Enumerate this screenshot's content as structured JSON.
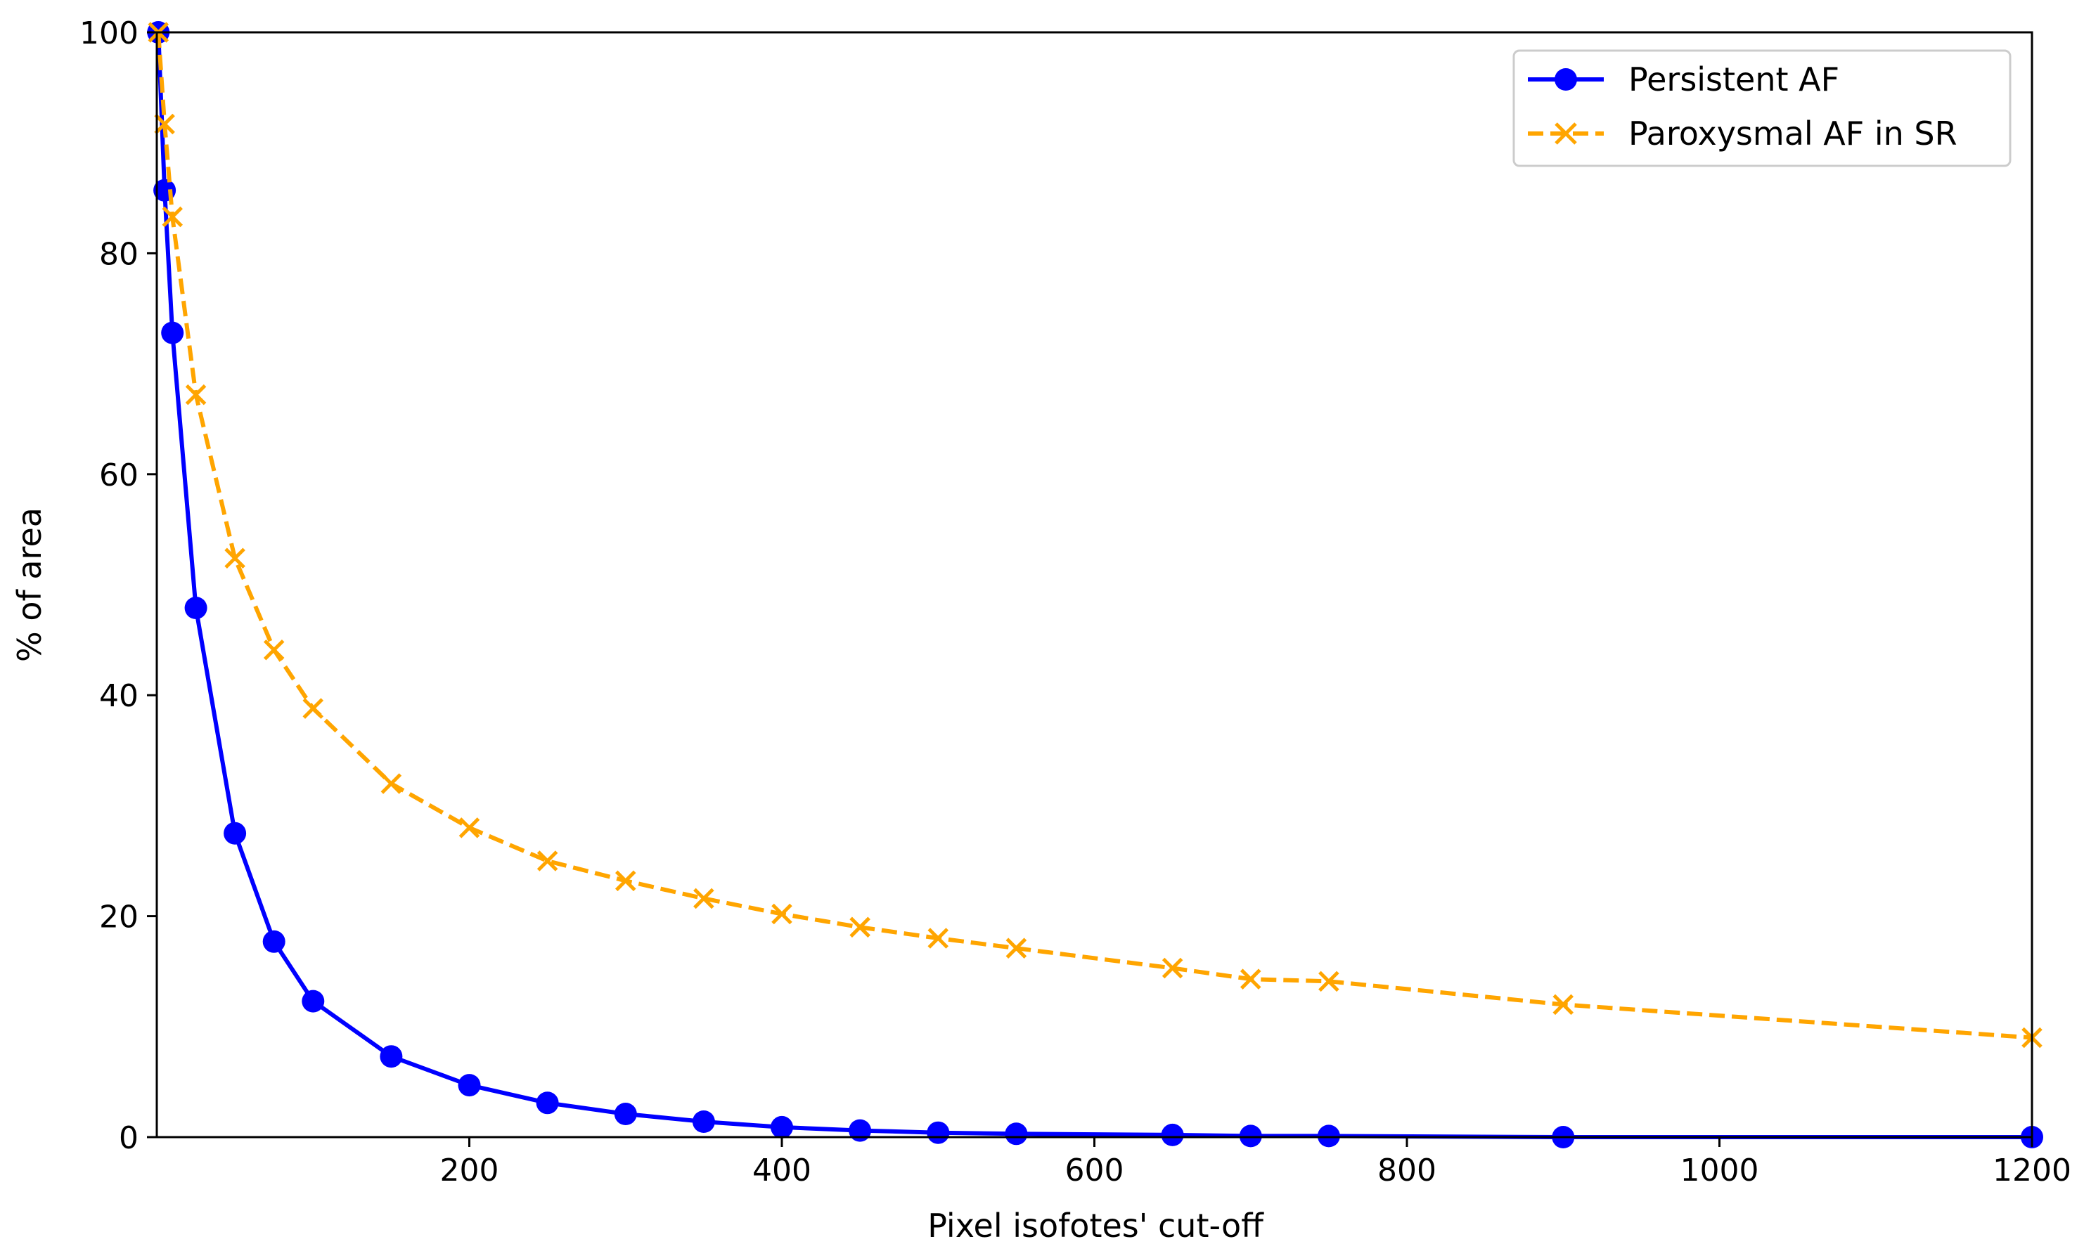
{
  "chart_data": {
    "type": "line",
    "title": "",
    "xlabel": "Pixel isofotes' cut-off",
    "ylabel": "% of area",
    "xlim": [
      0,
      1200
    ],
    "ylim": [
      0,
      100
    ],
    "xticks": [
      200,
      400,
      600,
      800,
      1000,
      1200
    ],
    "yticks": [
      0,
      20,
      40,
      60,
      80,
      100
    ],
    "grid": false,
    "legend_position": "top-right",
    "series": [
      {
        "name": "Persistent AF",
        "color": "#0000ff",
        "line_style": "solid",
        "marker": "circle",
        "x": [
          1,
          5,
          10,
          25,
          50,
          75,
          100,
          150,
          200,
          250,
          300,
          350,
          400,
          450,
          500,
          550,
          650,
          700,
          750,
          900,
          1200
        ],
        "y": [
          100,
          85.7,
          72.8,
          47.9,
          27.5,
          17.7,
          12.3,
          7.3,
          4.7,
          3.1,
          2.1,
          1.4,
          0.9,
          0.6,
          0.4,
          0.3,
          0.2,
          0.1,
          0.1,
          0.0,
          0.0
        ]
      },
      {
        "name": "Paroxysmal AF in SR",
        "color": "#ffa500",
        "line_style": "dashed",
        "marker": "x",
        "x": [
          1,
          5,
          10,
          25,
          50,
          75,
          100,
          150,
          200,
          250,
          300,
          350,
          400,
          450,
          500,
          550,
          650,
          700,
          750,
          900,
          1200
        ],
        "y": [
          100,
          91.7,
          83.3,
          67.2,
          52.4,
          44.1,
          38.8,
          32.0,
          28.0,
          25.0,
          23.2,
          21.6,
          20.2,
          19.0,
          18.0,
          17.1,
          15.3,
          14.3,
          14.1,
          12.0,
          9.0
        ]
      }
    ]
  }
}
